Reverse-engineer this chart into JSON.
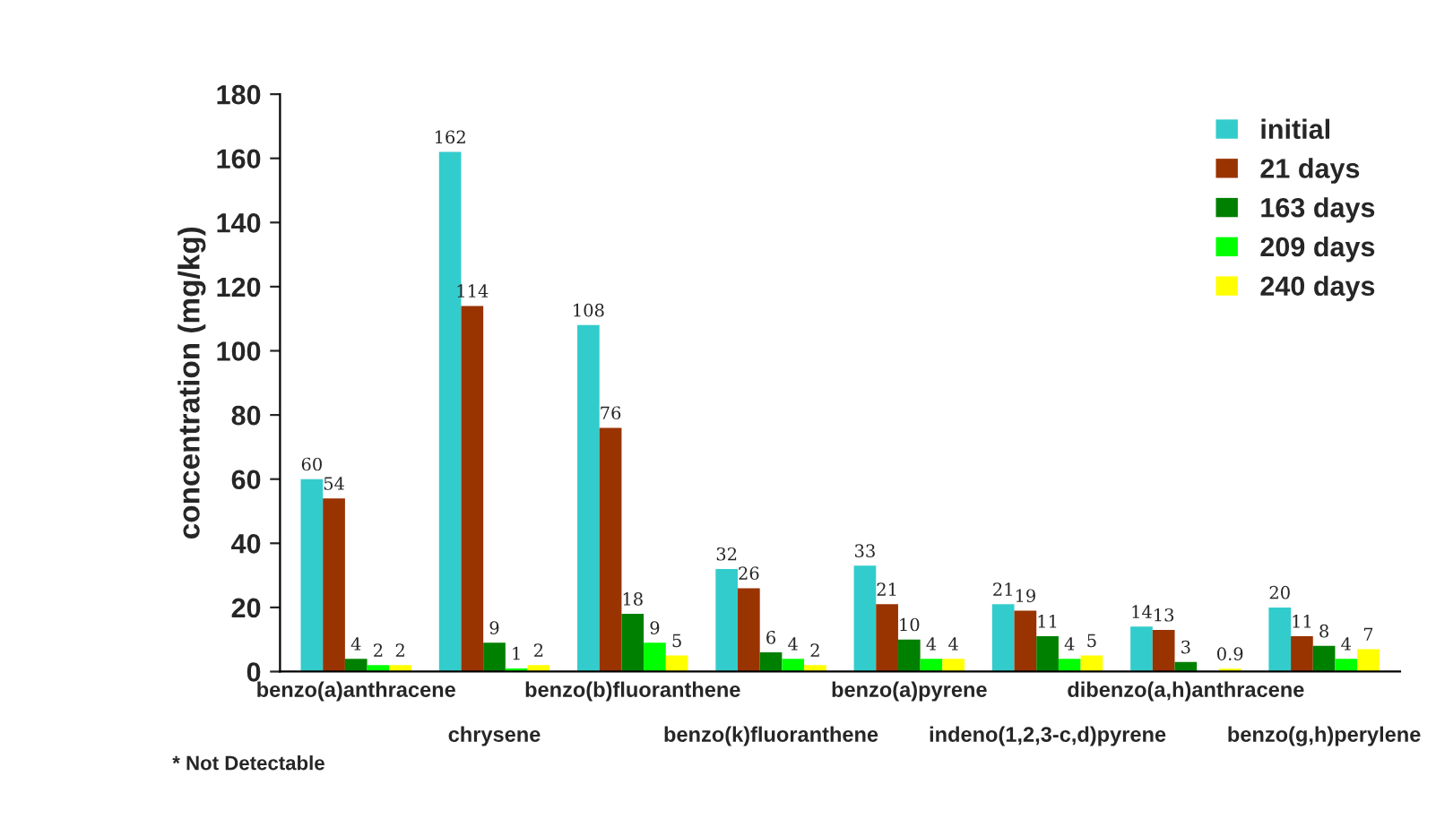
{
  "chart_data": {
    "type": "bar",
    "ylabel": "concentration (mg/kg)",
    "categories": [
      "benzo(a)anthracene",
      "chrysene",
      "benzo(b)fluoranthene",
      "benzo(k)fluoranthene",
      "benzo(a)pyrene",
      "indeno(1,2,3-c,d)pyrene",
      "dibenzo(a,h)anthracene",
      "benzo(g,h)perylene"
    ],
    "series": [
      {
        "name": "initial",
        "color": "#33cccc",
        "values": [
          60,
          162,
          108,
          32,
          33,
          21,
          14,
          20
        ]
      },
      {
        "name": "21 days",
        "color": "#993300",
        "values": [
          54,
          114,
          76,
          26,
          21,
          19,
          13,
          11
        ]
      },
      {
        "name": "163 days",
        "color": "#008000",
        "values": [
          4,
          9,
          18,
          6,
          10,
          11,
          3,
          8
        ]
      },
      {
        "name": "209 days",
        "color": "#00ff00",
        "values": [
          2,
          1,
          9,
          4,
          4,
          4,
          null,
          4
        ]
      },
      {
        "name": "240 days",
        "color": "#ffff00",
        "values": [
          2,
          2,
          5,
          2,
          4,
          5,
          0.9,
          7
        ]
      }
    ],
    "ylim": [
      0,
      180
    ],
    "yticks": [
      0,
      20,
      40,
      60,
      80,
      100,
      120,
      140,
      160,
      180
    ],
    "data_labels": true,
    "legend": "top right",
    "grid": false,
    "annotations": [
      "* Not Detectable"
    ]
  }
}
